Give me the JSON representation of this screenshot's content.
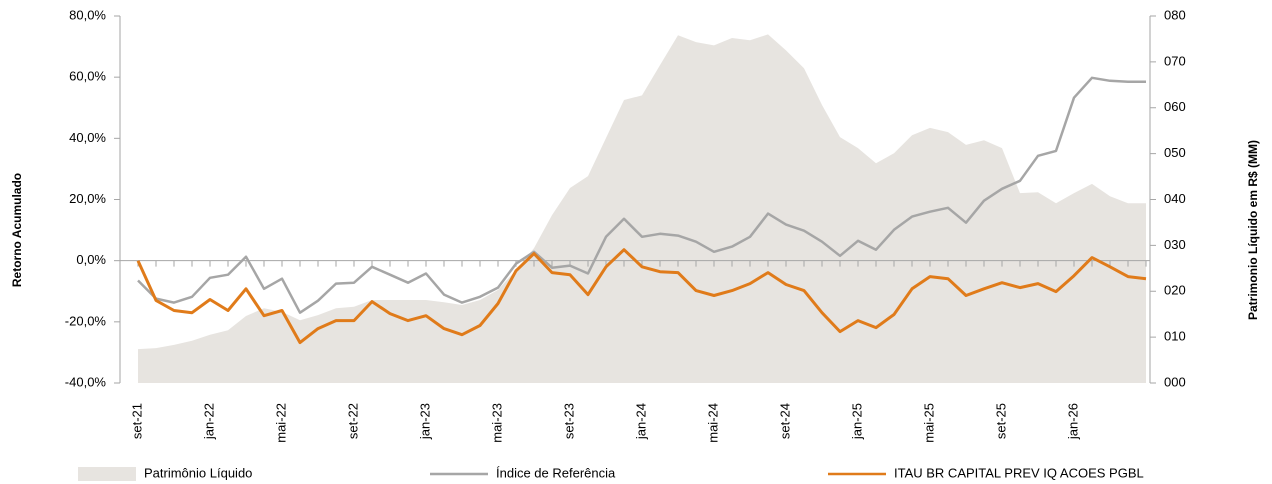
{
  "chart_data": {
    "type": "line",
    "y_label": "Retorno Acumulado",
    "y2_label": "Patrimonio Líquido em R$ (MM)",
    "categories": [
      "set-21",
      null,
      null,
      null,
      "jan-22",
      null,
      null,
      null,
      "mai-22",
      null,
      null,
      null,
      "set-22",
      null,
      null,
      null,
      "jan-23",
      null,
      null,
      null,
      "mai-23",
      null,
      null,
      null,
      "set-23",
      null,
      null,
      null,
      "jan-24",
      null,
      null,
      null,
      "mai-24",
      null,
      null,
      null,
      "set-24",
      null,
      null,
      null,
      "jan-25",
      null,
      null,
      null,
      "mai-25",
      null,
      null,
      null,
      "set-25",
      null,
      null,
      null,
      "jan-26",
      null,
      null,
      null,
      null
    ],
    "ylim": [
      -40,
      80
    ],
    "yticks": [
      {
        "value": -40,
        "label": "-40,0%"
      },
      {
        "value": -20,
        "label": "-20,0%"
      },
      {
        "value": 0,
        "label": "0,0%"
      },
      {
        "value": 20,
        "label": "20,0%"
      },
      {
        "value": 40,
        "label": "40,0%"
      },
      {
        "value": 60,
        "label": "60,0%"
      },
      {
        "value": 80,
        "label": "80,0%"
      }
    ],
    "y2lim": [
      0,
      80
    ],
    "y2ticks": [
      {
        "value": 0,
        "label": "000"
      },
      {
        "value": 10,
        "label": "010"
      },
      {
        "value": 20,
        "label": "020"
      },
      {
        "value": 30,
        "label": "030"
      },
      {
        "value": 40,
        "label": "040"
      },
      {
        "value": 50,
        "label": "050"
      },
      {
        "value": 60,
        "label": "060"
      },
      {
        "value": 70,
        "label": "070"
      },
      {
        "value": 80,
        "label": "080"
      }
    ],
    "series": [
      {
        "name": "Patrimônio Líquido",
        "type": "area",
        "axis": "y2",
        "color": "#e7e4e0",
        "values": [
          7.4,
          7.6,
          8.3,
          9.2,
          10.5,
          11.5,
          14.6,
          16.3,
          15.5,
          13.7,
          14.8,
          16.3,
          16.6,
          18.1,
          18.1,
          18.1,
          18.1,
          17.6,
          17,
          18.1,
          20.3,
          24.6,
          29.4,
          36.6,
          42.5,
          45.1,
          53.4,
          61.7,
          62.7,
          69.3,
          75.8,
          74.3,
          73.6,
          75.2,
          74.7,
          76,
          72.5,
          68.6,
          60.6,
          53.6,
          51.2,
          47.9,
          50.1,
          54,
          55.6,
          54.7,
          51.9,
          52.9,
          51.2,
          41.4,
          41.6,
          39.2,
          41.4,
          43.4,
          40.7,
          39.2,
          39.2
        ]
      },
      {
        "name": "Índice de Referência",
        "type": "line",
        "color": "#a6a6a6",
        "values": [
          -6.5,
          -12.4,
          -13.7,
          -11.8,
          -5.6,
          -4.6,
          1.3,
          -9.2,
          -5.9,
          -17,
          -13.1,
          -7.5,
          -7.2,
          -2,
          -4.6,
          -7.2,
          -4.2,
          -11.1,
          -13.7,
          -11.8,
          -8.8,
          -1,
          2.9,
          -2.3,
          -1.6,
          -4.2,
          7.8,
          13.7,
          7.8,
          8.8,
          8.2,
          6.2,
          2.9,
          4.6,
          7.8,
          15.4,
          11.8,
          9.8,
          6.2,
          1.6,
          6.5,
          3.6,
          10.1,
          14.4,
          16,
          17.3,
          12.4,
          19.6,
          23.5,
          26.1,
          34.3,
          35.9,
          53.3,
          59.8,
          58.8,
          58.5,
          58.5
        ]
      },
      {
        "name": "ITAU BR CAPITAL PREV IQ ACOES PGBL",
        "type": "line",
        "color": "#e07b1a",
        "values": [
          0,
          -13,
          -16.3,
          -17,
          -12.7,
          -16.3,
          -9.2,
          -18,
          -16.3,
          -26.8,
          -22.2,
          -19.6,
          -19.6,
          -13.4,
          -17.3,
          -19.6,
          -18,
          -22.2,
          -24.2,
          -21.2,
          -14,
          -3.3,
          2.3,
          -3.9,
          -4.6,
          -11.1,
          -2,
          3.6,
          -2,
          -3.6,
          -3.9,
          -9.8,
          -11.4,
          -9.8,
          -7.5,
          -3.9,
          -7.8,
          -9.8,
          -17,
          -23.2,
          -19.6,
          -21.9,
          -17.6,
          -9.2,
          -5.2,
          -5.9,
          -11.4,
          -9.2,
          -7.2,
          -8.8,
          -7.5,
          -10.1,
          -4.9,
          1,
          -2,
          -5.2,
          -5.9
        ]
      }
    ]
  }
}
